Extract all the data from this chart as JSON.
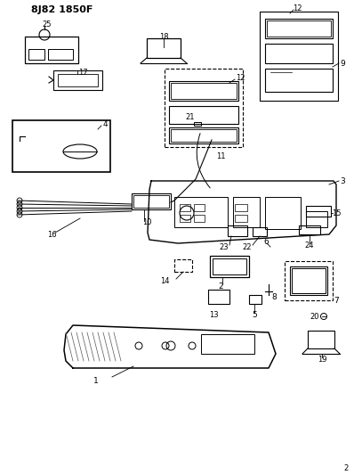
{
  "title": "8J82 1850F",
  "bg_color": "#ffffff",
  "line_color": "#000000",
  "fig_width": 3.98,
  "fig_height": 5.33,
  "dpi": 100
}
